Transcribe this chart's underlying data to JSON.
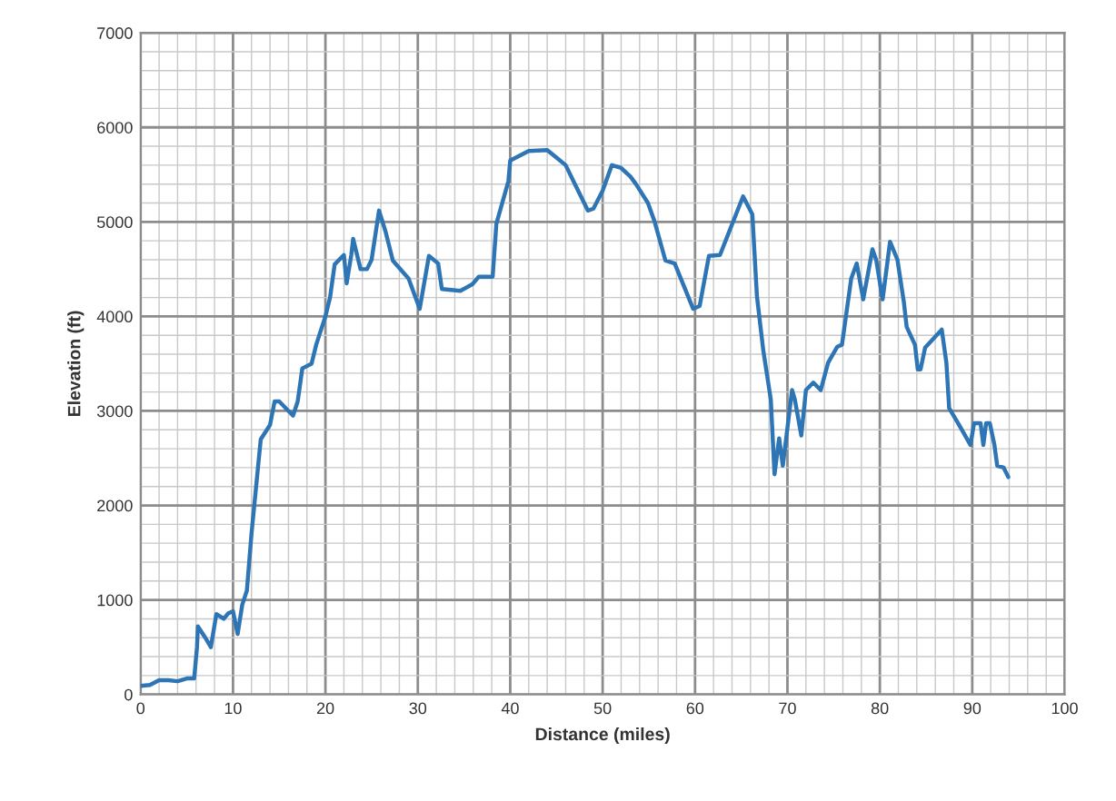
{
  "chart_data": {
    "type": "line",
    "xlabel": "Distance (miles)",
    "ylabel": "Elevation (ft)",
    "xlim": [
      0,
      100
    ],
    "xticks": [
      0,
      10,
      20,
      30,
      40,
      50,
      60,
      70,
      80,
      90,
      100
    ],
    "ylim": [
      0,
      7000
    ],
    "yticks": [
      0,
      1000,
      2000,
      3000,
      4000,
      5000,
      6000,
      7000
    ],
    "grid": true,
    "marker": "none",
    "line_style": "solid",
    "series": [
      {
        "color": "#2e75b6",
        "x": [
          0,
          1,
          2,
          3,
          4,
          5,
          5.8,
          6.1,
          6.2,
          7,
          7.6,
          8.2,
          9,
          9.5,
          10.0,
          10.5,
          11,
          11.5,
          12,
          12.5,
          13,
          14,
          14.5,
          15,
          16,
          16.5,
          17,
          17.5,
          18.5,
          19,
          20,
          20.5,
          21,
          22,
          22.3,
          22.8,
          23,
          23.8,
          24.5,
          25,
          25.8,
          26.5,
          27.3,
          29.0,
          30.2,
          31.2,
          32.2,
          32.6,
          34.6,
          35.9,
          36.6,
          38.1,
          38.5,
          39.8,
          40,
          41,
          42,
          44,
          45,
          46,
          47,
          48.4,
          49.0,
          50.0,
          51,
          52,
          53,
          53.6,
          54.9,
          55.6,
          56.8,
          57.8,
          59.8,
          60.5,
          61.5,
          62.7,
          65.2,
          66.2,
          66.7,
          67.4,
          68.2,
          68.6,
          69.1,
          69.5,
          70.5,
          70.8,
          71.5,
          72.0,
          72.8,
          73.6,
          74.4,
          75.4,
          75.9,
          76.9,
          77.5,
          78.2,
          79.2,
          79.6,
          80.3,
          81.1,
          81.9,
          82.6,
          82.9,
          83.8,
          84.1,
          84.4,
          84.9,
          86.7,
          87.2,
          87.5,
          88.7,
          89.8,
          90.2,
          90.9,
          91.2,
          91.5,
          91.9,
          92.4,
          92.7,
          93.4,
          93.9
        ],
        "values": [
          90,
          100,
          150,
          150,
          140,
          170,
          170,
          500,
          720,
          600,
          500,
          850,
          800,
          860,
          880,
          640,
          950,
          1100,
          1700,
          2200,
          2700,
          2850,
          3100,
          3100,
          3000,
          2950,
          3100,
          3450,
          3500,
          3700,
          4000,
          4200,
          4550,
          4650,
          4350,
          4650,
          4820,
          4500,
          4500,
          4600,
          5120,
          4900,
          4590,
          4400,
          4080,
          4640,
          4560,
          4290,
          4270,
          4340,
          4420,
          4420,
          4980,
          5430,
          5650,
          5700,
          5750,
          5760,
          5680,
          5600,
          5400,
          5120,
          5140,
          5330,
          5600,
          5570,
          5480,
          5400,
          5200,
          5010,
          4590,
          4560,
          4080,
          4110,
          4640,
          4650,
          5270,
          5080,
          4210,
          3630,
          3120,
          2330,
          2710,
          2420,
          3220,
          3120,
          2740,
          3220,
          3300,
          3220,
          3510,
          3680,
          3700,
          4400,
          4560,
          4180,
          4710,
          4600,
          4180,
          4790,
          4600,
          4150,
          3890,
          3700,
          3440,
          3440,
          3670,
          3860,
          3510,
          3030,
          2830,
          2640,
          2870,
          2870,
          2640,
          2870,
          2870,
          2640,
          2420,
          2400,
          2300
        ]
      }
    ]
  }
}
